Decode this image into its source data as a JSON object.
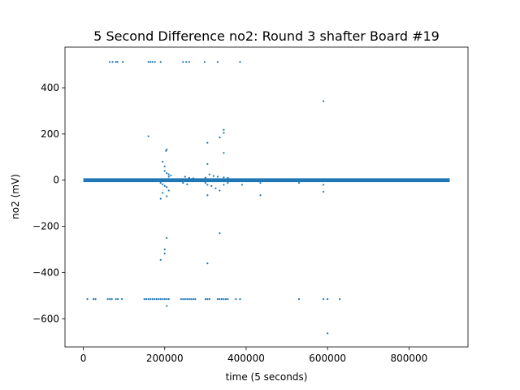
{
  "chart_data": {
    "type": "scatter",
    "title": "5 Second Difference no2: Round 3 shafter Board #19",
    "xlabel": "time (5 seconds)",
    "ylabel": "no2 (mV)",
    "xlim": [
      -45000,
      945000
    ],
    "ylim": [
      -722,
      576
    ],
    "xticks": [
      0,
      200000,
      400000,
      600000,
      800000
    ],
    "xtick_labels": [
      "0",
      "200000",
      "400000",
      "600000",
      "800000"
    ],
    "yticks": [
      -600,
      -400,
      -200,
      0,
      200,
      400
    ],
    "ytick_labels": [
      "−600",
      "−400",
      "−200",
      "0",
      "200",
      "400"
    ],
    "grid": false,
    "legend": "none",
    "color": "#1f77b4",
    "series": [
      {
        "dense_band": {
          "x_range": [
            0,
            900000
          ],
          "y_range": [
            -3,
            3
          ]
        },
        "points": [
          [
            65000,
            512
          ],
          [
            72000,
            512
          ],
          [
            80000,
            512
          ],
          [
            84000,
            512
          ],
          [
            97000,
            512
          ],
          [
            160000,
            512
          ],
          [
            165000,
            512
          ],
          [
            170000,
            512
          ],
          [
            176000,
            512
          ],
          [
            190000,
            512
          ],
          [
            245000,
            512
          ],
          [
            253000,
            512
          ],
          [
            260000,
            512
          ],
          [
            298000,
            512
          ],
          [
            330000,
            512
          ],
          [
            385000,
            512
          ],
          [
            590000,
            342
          ],
          [
            345000,
            218
          ],
          [
            345000,
            205
          ],
          [
            335000,
            185
          ],
          [
            305000,
            162
          ],
          [
            160000,
            190
          ],
          [
            205000,
            133
          ],
          [
            203000,
            127
          ],
          [
            345000,
            118
          ],
          [
            305000,
            70
          ],
          [
            195000,
            80
          ],
          [
            200000,
            60
          ],
          [
            200000,
            40
          ],
          [
            205000,
            30
          ],
          [
            210000,
            25
          ],
          [
            215000,
            20
          ],
          [
            210000,
            15
          ],
          [
            310000,
            25
          ],
          [
            320000,
            18
          ],
          [
            330000,
            15
          ],
          [
            345000,
            12
          ],
          [
            355000,
            10
          ],
          [
            250000,
            15
          ],
          [
            260000,
            10
          ],
          [
            270000,
            8
          ],
          [
            300000,
            10
          ],
          [
            190000,
            -12
          ],
          [
            195000,
            -18
          ],
          [
            200000,
            -25
          ],
          [
            205000,
            -30
          ],
          [
            210000,
            -45
          ],
          [
            195000,
            -55
          ],
          [
            205000,
            -70
          ],
          [
            190000,
            -80
          ],
          [
            245000,
            -12
          ],
          [
            255000,
            -18
          ],
          [
            300000,
            -12
          ],
          [
            305000,
            -20
          ],
          [
            315000,
            -25
          ],
          [
            325000,
            -35
          ],
          [
            335000,
            -45
          ],
          [
            305000,
            -65
          ],
          [
            345000,
            -20
          ],
          [
            355000,
            -12
          ],
          [
            435000,
            -12
          ],
          [
            435000,
            -65
          ],
          [
            390000,
            -20
          ],
          [
            590000,
            -20
          ],
          [
            590000,
            -50
          ],
          [
            530000,
            -12
          ],
          [
            205000,
            -250
          ],
          [
            200000,
            -300
          ],
          [
            200000,
            -318
          ],
          [
            190000,
            -345
          ],
          [
            335000,
            -230
          ],
          [
            305000,
            -360
          ],
          [
            10000,
            -515
          ],
          [
            25000,
            -515
          ],
          [
            30000,
            -515
          ],
          [
            60000,
            -515
          ],
          [
            65000,
            -515
          ],
          [
            70000,
            -515
          ],
          [
            80000,
            -515
          ],
          [
            85000,
            -515
          ],
          [
            95000,
            -515
          ],
          [
            150000,
            -515
          ],
          [
            155000,
            -515
          ],
          [
            160000,
            -515
          ],
          [
            165000,
            -515
          ],
          [
            170000,
            -515
          ],
          [
            175000,
            -515
          ],
          [
            180000,
            -515
          ],
          [
            185000,
            -515
          ],
          [
            190000,
            -515
          ],
          [
            195000,
            -515
          ],
          [
            200000,
            -515
          ],
          [
            205000,
            -515
          ],
          [
            210000,
            -515
          ],
          [
            240000,
            -515
          ],
          [
            245000,
            -515
          ],
          [
            250000,
            -515
          ],
          [
            255000,
            -515
          ],
          [
            260000,
            -515
          ],
          [
            265000,
            -515
          ],
          [
            270000,
            -515
          ],
          [
            275000,
            -515
          ],
          [
            300000,
            -515
          ],
          [
            305000,
            -515
          ],
          [
            310000,
            -515
          ],
          [
            330000,
            -515
          ],
          [
            335000,
            -515
          ],
          [
            340000,
            -515
          ],
          [
            345000,
            -515
          ],
          [
            350000,
            -515
          ],
          [
            355000,
            -515
          ],
          [
            375000,
            -515
          ],
          [
            385000,
            -515
          ],
          [
            530000,
            -515
          ],
          [
            590000,
            -515
          ],
          [
            600000,
            -515
          ],
          [
            630000,
            -515
          ],
          [
            205000,
            -545
          ],
          [
            600000,
            -663
          ]
        ]
      }
    ]
  }
}
